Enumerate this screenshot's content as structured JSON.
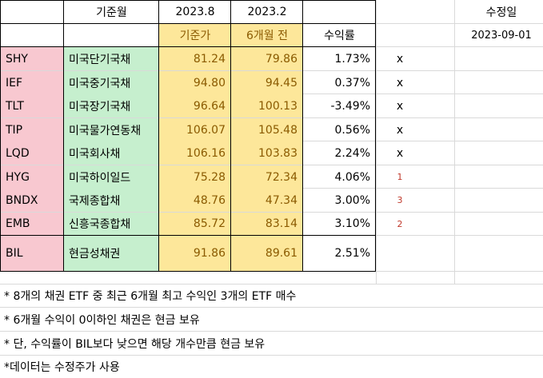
{
  "header": {
    "col_b": "기준월",
    "col_c": "2023.8",
    "col_d": "2023.2",
    "modified_label": "수정일",
    "modified_date": "2023-09-01"
  },
  "subheader": {
    "base_price": "기준가",
    "six_months_ago": "6개월 전",
    "return": "수익률"
  },
  "rows": [
    {
      "ticker": "SHY",
      "name": "미국단기국채",
      "price": "81.24",
      "prev": "79.86",
      "ret": "1.73%",
      "mark": "x"
    },
    {
      "ticker": "IEF",
      "name": "미국중기국채",
      "price": "94.80",
      "prev": "94.45",
      "ret": "0.37%",
      "mark": "x"
    },
    {
      "ticker": "TLT",
      "name": "미국장기국채",
      "price": "96.64",
      "prev": "100.13",
      "ret": "-3.49%",
      "mark": "x"
    },
    {
      "ticker": "TIP",
      "name": "미국물가연동채",
      "price": "106.07",
      "prev": "105.48",
      "ret": "0.56%",
      "mark": "x"
    },
    {
      "ticker": "LQD",
      "name": "미국회사채",
      "price": "106.16",
      "prev": "103.83",
      "ret": "2.24%",
      "mark": "x"
    },
    {
      "ticker": "HYG",
      "name": "미국하이일드",
      "price": "75.28",
      "prev": "72.34",
      "ret": "4.06%",
      "mark": "1"
    },
    {
      "ticker": "BNDX",
      "name": "국제종합채",
      "price": "48.76",
      "prev": "47.34",
      "ret": "3.00%",
      "mark": "3"
    },
    {
      "ticker": "EMB",
      "name": "신흥국종합채",
      "price": "85.72",
      "prev": "83.14",
      "ret": "3.10%",
      "mark": "2"
    },
    {
      "ticker": "BIL",
      "name": "현금성채권",
      "price": "91.86",
      "prev": "89.61",
      "ret": "2.51%",
      "mark": ""
    }
  ],
  "notes": [
    "* 8개의 채권 ETF 중 최근 6개월 최고 수익인 3개의 ETF 매수",
    "* 6개월 수익이 0이하인 채권은 현금 보유",
    "* 단, 수익률이 BIL보다 낮으면 해당 개수만큼 현금 보유",
    "*데이터는 수정주가 사용"
  ],
  "colors": {
    "ticker_bg": "#f8c8d0",
    "name_bg": "#c6efce",
    "price_bg": "#fde79a",
    "rank_text": "#c0392b"
  }
}
